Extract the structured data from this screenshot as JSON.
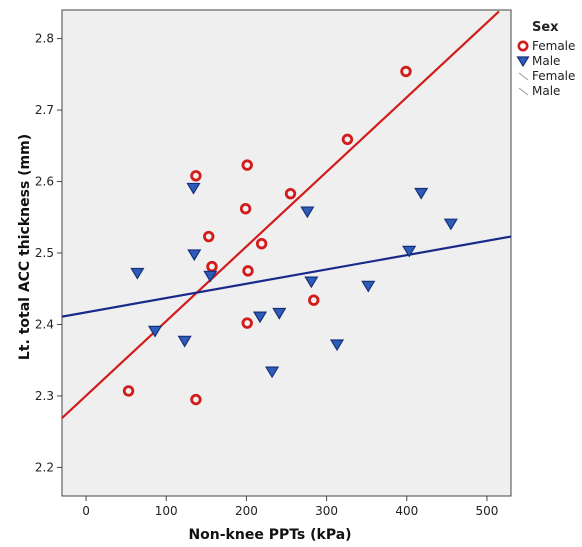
{
  "chart_data": {
    "type": "scatter",
    "title": "",
    "xlabel": "Non-knee PPTs (kPa)",
    "ylabel": "Lt. total ACC thickness (mm)",
    "xlim": [
      -30,
      530
    ],
    "ylim": [
      2.16,
      2.84
    ],
    "xticks": [
      "0",
      "100",
      "200",
      "300",
      "400",
      "500"
    ],
    "yticks": [
      "2.2",
      "2.3",
      "2.4",
      "2.5",
      "2.6",
      "2.7",
      "2.8"
    ],
    "grid": false,
    "legend": {
      "title": "Sex",
      "position": "right",
      "entries": [
        "Female",
        "Male",
        "Female",
        "Male"
      ]
    },
    "series": [
      {
        "name": "Female",
        "kind": "points",
        "marker": "circle",
        "color": "#d21c1c",
        "points": [
          [
            53,
            2.307
          ],
          [
            137,
            2.295
          ],
          [
            137,
            2.608
          ],
          [
            153,
            2.523
          ],
          [
            157,
            2.481
          ],
          [
            199,
            2.562
          ],
          [
            201,
            2.623
          ],
          [
            201,
            2.402
          ],
          [
            202,
            2.475
          ],
          [
            219,
            2.513
          ],
          [
            255,
            2.583
          ],
          [
            284,
            2.434
          ],
          [
            326,
            2.659
          ],
          [
            399,
            2.754
          ]
        ]
      },
      {
        "name": "Male",
        "kind": "points",
        "marker": "triangle-down",
        "color": "#2a4fa0",
        "points": [
          [
            64,
            2.472
          ],
          [
            86,
            2.391
          ],
          [
            123,
            2.377
          ],
          [
            134,
            2.591
          ],
          [
            135,
            2.498
          ],
          [
            155,
            2.468
          ],
          [
            217,
            2.411
          ],
          [
            232,
            2.334
          ],
          [
            241,
            2.416
          ],
          [
            276,
            2.558
          ],
          [
            281,
            2.46
          ],
          [
            313,
            2.372
          ],
          [
            352,
            2.454
          ],
          [
            403,
            2.503
          ],
          [
            418,
            2.584
          ],
          [
            455,
            2.541
          ]
        ]
      },
      {
        "name": "Female",
        "kind": "fit-line",
        "color": "#d21c1c",
        "points": [
          [
            -30,
            2.269
          ],
          [
            515,
            2.838
          ]
        ]
      },
      {
        "name": "Male",
        "kind": "fit-line",
        "color": "#1a2a8a",
        "points": [
          [
            -30,
            2.411
          ],
          [
            530,
            2.523
          ]
        ]
      }
    ]
  }
}
